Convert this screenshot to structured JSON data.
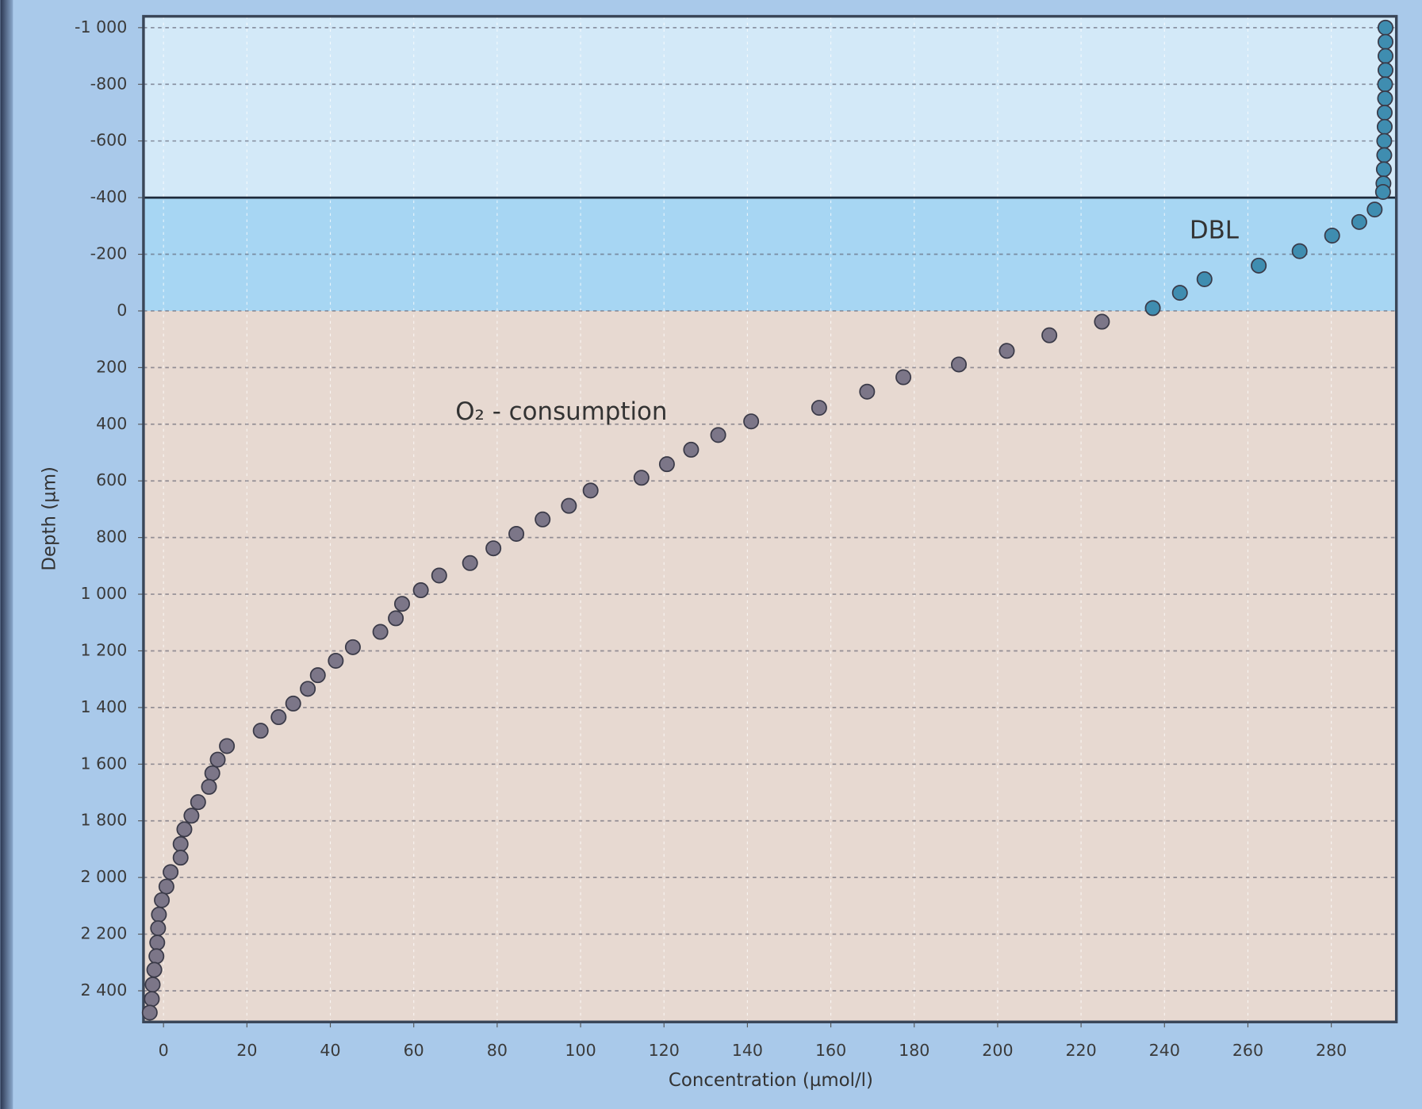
{
  "chart_data": {
    "type": "scatter",
    "x_label": "Concentration (µmol/l)",
    "y_label": "Depth (µm)",
    "xlim": [
      -4.8,
      295.6
    ],
    "ylim": [
      -1040,
      2510
    ],
    "y_inverted": true,
    "xticks": [
      0,
      20,
      40,
      60,
      80,
      100,
      120,
      140,
      160,
      180,
      200,
      220,
      240,
      260,
      280
    ],
    "yticks": [
      {
        "value": -1000,
        "label": "-1 000"
      },
      -800,
      -600,
      -400,
      -200,
      0,
      200,
      400,
      600,
      800,
      {
        "value": 1000,
        "label": "1 000"
      },
      {
        "value": 1200,
        "label": "1 200"
      },
      {
        "value": 1400,
        "label": "1 400"
      },
      {
        "value": 1600,
        "label": "1 600"
      },
      {
        "value": 1800,
        "label": "1 800"
      },
      {
        "value": 2000,
        "label": "2 000"
      },
      {
        "value": 2200,
        "label": "2 200"
      },
      {
        "value": 2400,
        "label": "2 400"
      }
    ],
    "grid": true,
    "bands": [
      {
        "from": -1040,
        "to": -400,
        "color": "#d3e9f8"
      },
      {
        "from": -400,
        "to": 0,
        "color": "#a7d6f3"
      },
      {
        "from": 0,
        "to": 2510,
        "color": "#e7d9d1"
      }
    ],
    "annotations": [
      {
        "text": "DBL",
        "x": 246,
        "y": -280
      },
      {
        "text": "O₂ - consumption",
        "x": 70,
        "y": 360
      }
    ],
    "series": [
      {
        "color": "#3f8db0",
        "x": [
          293,
          293,
          293,
          293,
          292.9,
          292.9,
          292.8,
          292.8,
          292.7,
          292.7,
          292.6,
          292.5,
          292.4,
          290.4,
          286.7,
          280.2,
          272.4,
          262.6,
          249.6,
          243.7,
          237.2
        ],
        "y": [
          -1000,
          -950,
          -900,
          -850,
          -800,
          -750,
          -700,
          -650,
          -600,
          -550,
          -500,
          -450,
          -420,
          -358,
          -314,
          -266,
          -211,
          -160,
          -112,
          -64,
          -10
        ]
      },
      {
        "color": "#7c7688",
        "x": [
          225,
          212.4,
          202.2,
          190.7,
          177.4,
          168.7,
          157.2,
          140.9,
          133,
          126.5,
          120.7,
          114.6,
          102.4,
          97.2,
          90.9,
          84.6,
          79.1,
          73.5,
          66.1,
          61.7,
          57.2,
          55.7,
          52,
          45.4,
          41.3,
          37,
          34.6,
          31.1,
          27.6,
          23.3,
          15.2,
          13,
          11.7,
          10.9,
          8.3,
          6.7,
          5,
          4.1,
          4.1,
          1.7,
          0.7,
          -0.4,
          -1.1,
          -1.3,
          -1.5,
          -1.7,
          -2.2,
          -2.6,
          -2.8,
          -3.3
        ],
        "y": [
          38,
          86,
          141,
          189,
          234,
          285,
          342,
          390,
          438,
          490,
          541,
          589,
          634,
          688,
          736,
          787,
          838,
          890,
          934,
          986,
          1034,
          1085,
          1133,
          1187,
          1235,
          1286,
          1334,
          1386,
          1434,
          1482,
          1536,
          1584,
          1632,
          1680,
          1734,
          1782,
          1830,
          1882,
          1930,
          1981,
          2032,
          2080,
          2131,
          2179,
          2230,
          2278,
          2326,
          2378,
          2429,
          2477
        ]
      }
    ]
  }
}
